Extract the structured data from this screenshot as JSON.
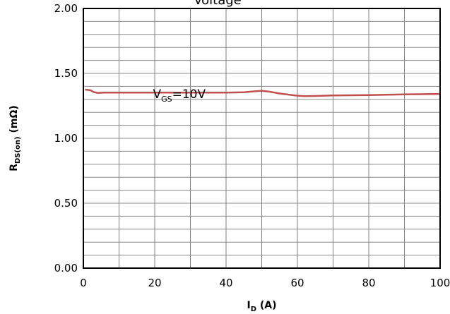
{
  "chart_data": {
    "type": "line",
    "title": "Voltage",
    "xlabel": {
      "main": "I",
      "sub": "D",
      "suffix": " (A)"
    },
    "ylabel": {
      "main": "R",
      "sub": "DS(on)",
      "suffix": " (mΩ)"
    },
    "xlim": [
      0,
      100
    ],
    "ylim": [
      0,
      2.0
    ],
    "x_ticks": [
      0,
      20,
      40,
      60,
      80,
      100
    ],
    "x_tick_labels": [
      "0",
      "20",
      "40",
      "60",
      "80",
      "100"
    ],
    "y_ticks": [
      0,
      0.5,
      1.0,
      1.5,
      2.0
    ],
    "y_tick_labels": [
      "0.00",
      "0.50",
      "1.00",
      "1.50",
      "2.00"
    ],
    "grid": true,
    "series": [
      {
        "name": "",
        "color": "#c0504d",
        "x": [
          0.5,
          2,
          3,
          4,
          6,
          10,
          20,
          30,
          40,
          45,
          48,
          50,
          52,
          55,
          60,
          62,
          65,
          70,
          80,
          90,
          100
        ],
        "y": [
          1.375,
          1.37,
          1.355,
          1.35,
          1.352,
          1.352,
          1.352,
          1.352,
          1.352,
          1.355,
          1.362,
          1.365,
          1.36,
          1.345,
          1.328,
          1.325,
          1.326,
          1.33,
          1.333,
          1.338,
          1.342
        ]
      }
    ],
    "annotations": [
      {
        "main": "V",
        "sub": "GS",
        "suffix": "=10V",
        "x": 19.5,
        "y": 1.31
      }
    ]
  }
}
